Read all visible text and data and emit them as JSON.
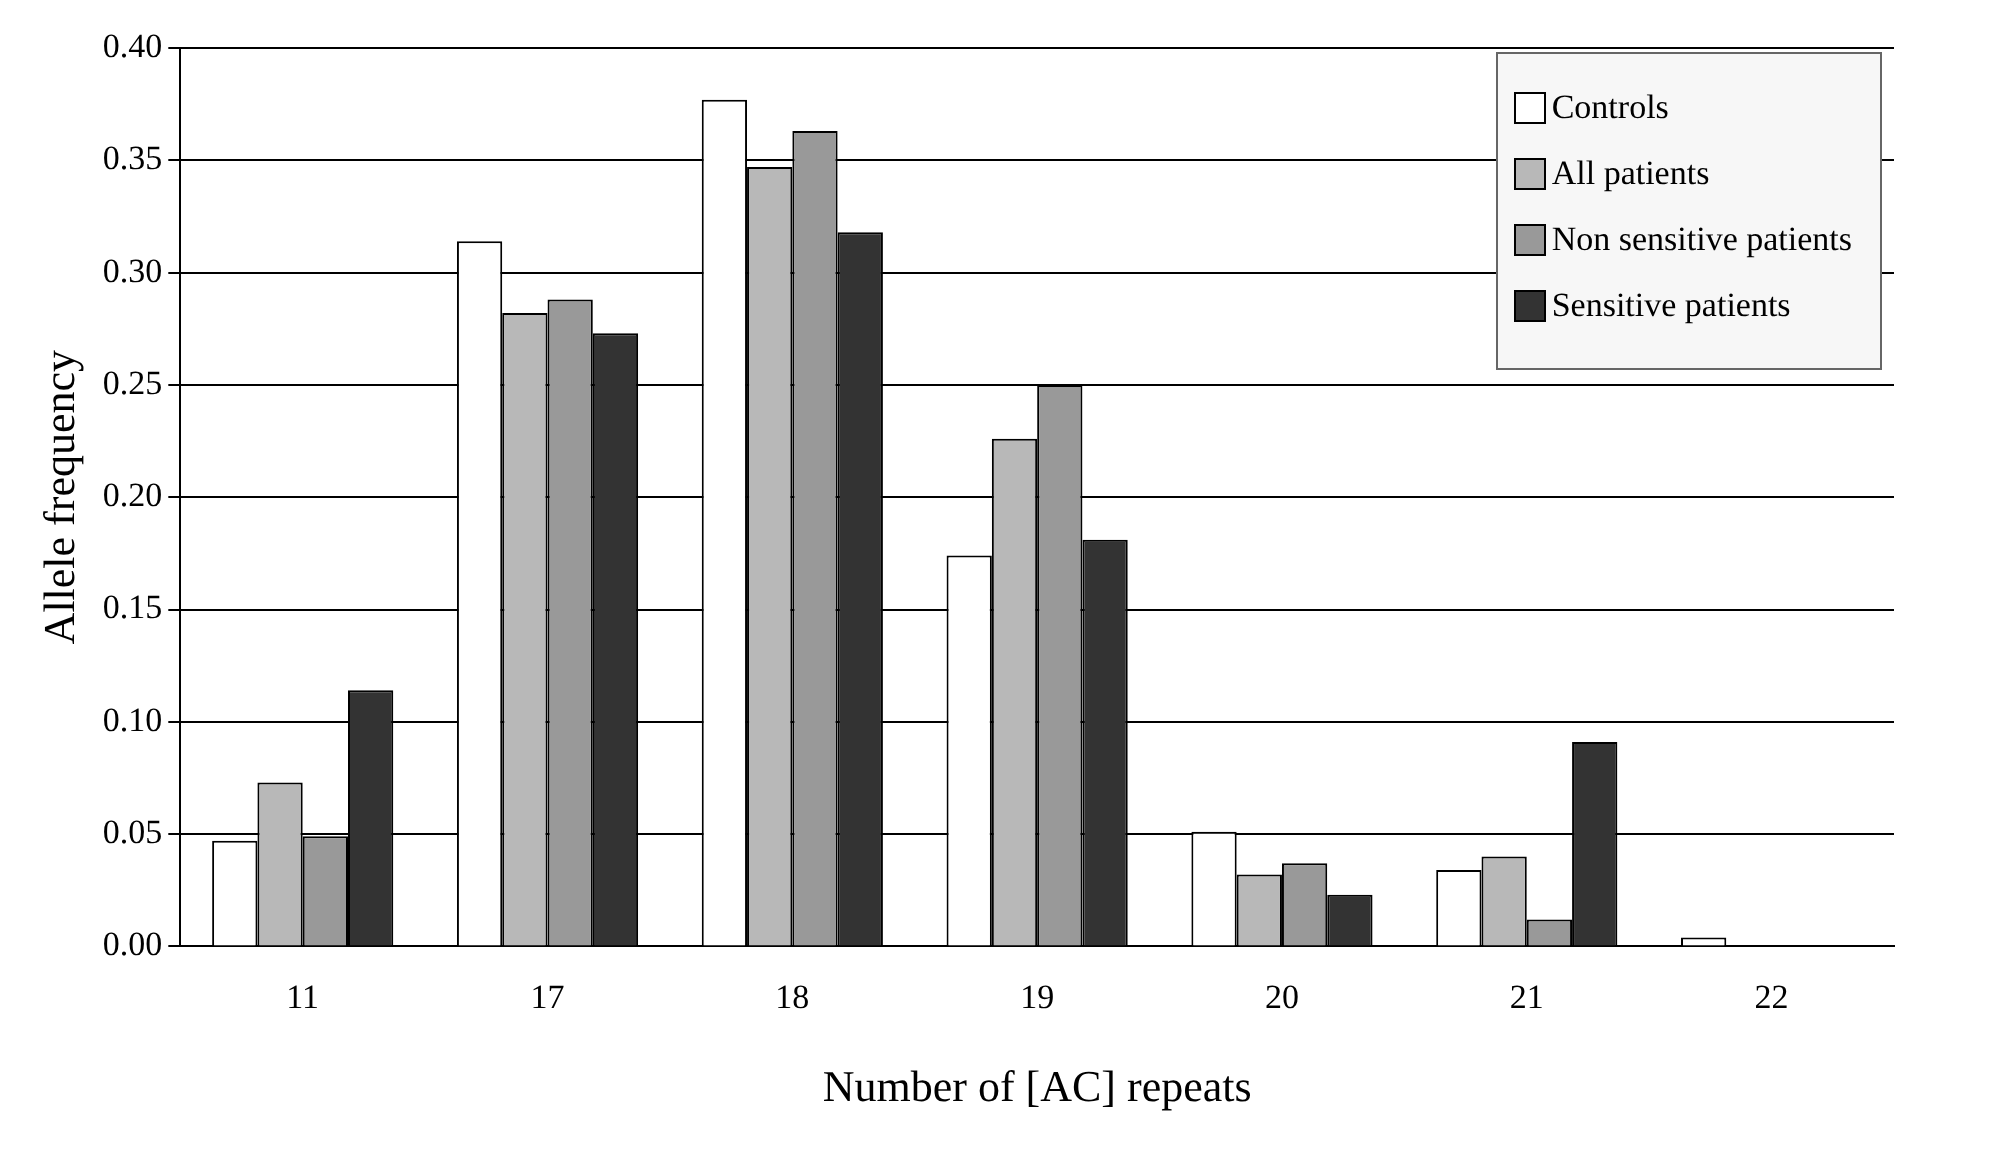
{
  "chart_data": {
    "type": "bar",
    "xlabel": "Number of [AC] repeats",
    "ylabel": "Allele frequency",
    "categories": [
      "11",
      "17",
      "18",
      "19",
      "20",
      "21",
      "22"
    ],
    "series": [
      {
        "name": "Controls",
        "color": "#ffffff",
        "values": [
          0.047,
          0.314,
          0.377,
          0.174,
          0.051,
          0.034,
          0.004
        ]
      },
      {
        "name": "All patients",
        "color": "#b8b8b8",
        "values": [
          0.073,
          0.282,
          0.347,
          0.226,
          0.032,
          0.04,
          0
        ]
      },
      {
        "name": "Non sensitive patients",
        "color": "#999999",
        "values": [
          0.049,
          0.288,
          0.363,
          0.25,
          0.037,
          0.012,
          0
        ]
      },
      {
        "name": "Sensitive patients",
        "color": "#333333",
        "values": [
          0.114,
          0.273,
          0.318,
          0.181,
          0.023,
          0.091,
          0
        ]
      }
    ],
    "ylim": [
      0,
      0.4
    ],
    "yticks": [
      {
        "value": 0,
        "label": "0.00"
      },
      0.05,
      {
        "value": 0.1,
        "label": "0.10"
      },
      0.15,
      {
        "value": 0.2,
        "label": "0.20"
      },
      0.25,
      {
        "value": 0.3,
        "label": "0.30"
      },
      0.35,
      {
        "value": 0.4,
        "label": "0.40"
      }
    ],
    "grid": "y",
    "legend": "top right"
  }
}
